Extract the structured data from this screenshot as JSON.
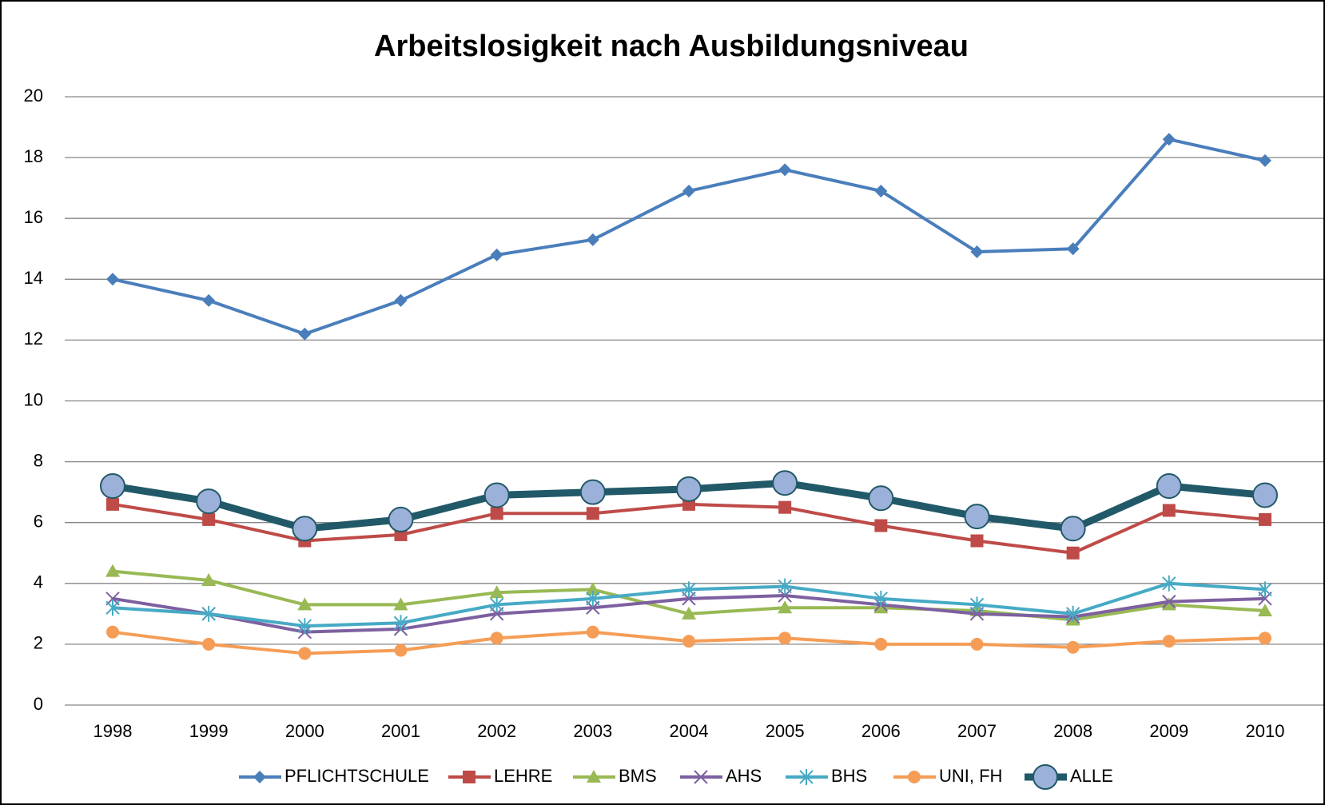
{
  "chart_data": {
    "type": "line",
    "title": "Arbeitslosigkeit nach Ausbildungsniveau",
    "categories": [
      "1998",
      "1999",
      "2000",
      "2001",
      "2002",
      "2003",
      "2004",
      "2005",
      "2006",
      "2007",
      "2008",
      "2009",
      "2010"
    ],
    "ylim": [
      0,
      20
    ],
    "yticks": [
      0,
      2,
      4,
      6,
      8,
      10,
      12,
      14,
      16,
      18,
      20
    ],
    "grid": true,
    "legend": "bottom",
    "series": [
      {
        "name": "PFLICHTSCHULE",
        "color": "#4a7ebb",
        "marker": "diamond",
        "values": [
          14.0,
          13.3,
          12.2,
          13.3,
          14.8,
          15.3,
          16.9,
          17.6,
          16.9,
          14.9,
          15.0,
          18.6,
          17.9
        ]
      },
      {
        "name": "LEHRE",
        "color": "#be4b48",
        "marker": "square",
        "values": [
          6.6,
          6.1,
          5.4,
          5.6,
          6.3,
          6.3,
          6.6,
          6.5,
          5.9,
          5.4,
          5.0,
          6.4,
          6.1
        ]
      },
      {
        "name": "BMS",
        "color": "#98b954",
        "marker": "triangle",
        "values": [
          4.4,
          4.1,
          3.3,
          3.3,
          3.7,
          3.8,
          3.0,
          3.2,
          3.2,
          3.1,
          2.8,
          3.3,
          3.1
        ]
      },
      {
        "name": "AHS",
        "color": "#7d60a0",
        "marker": "cross",
        "values": [
          3.5,
          3.0,
          2.4,
          2.5,
          3.0,
          3.2,
          3.5,
          3.6,
          3.3,
          3.0,
          2.9,
          3.4,
          3.5
        ]
      },
      {
        "name": "BHS",
        "color": "#46aac5",
        "marker": "star",
        "values": [
          3.2,
          3.0,
          2.6,
          2.7,
          3.3,
          3.5,
          3.8,
          3.9,
          3.5,
          3.3,
          3.0,
          4.0,
          3.8
        ]
      },
      {
        "name": "UNI, FH",
        "color": "#f59d56",
        "marker": "circle",
        "values": [
          2.4,
          2.0,
          1.7,
          1.8,
          2.2,
          2.4,
          2.1,
          2.2,
          2.0,
          2.0,
          1.9,
          2.1,
          2.2
        ]
      },
      {
        "name": "ALLE",
        "color": "#215968",
        "marker": "big-circle",
        "values": [
          7.2,
          6.7,
          5.8,
          6.1,
          6.9,
          7.0,
          7.1,
          7.3,
          6.8,
          6.2,
          5.8,
          7.2,
          6.9
        ]
      }
    ]
  }
}
